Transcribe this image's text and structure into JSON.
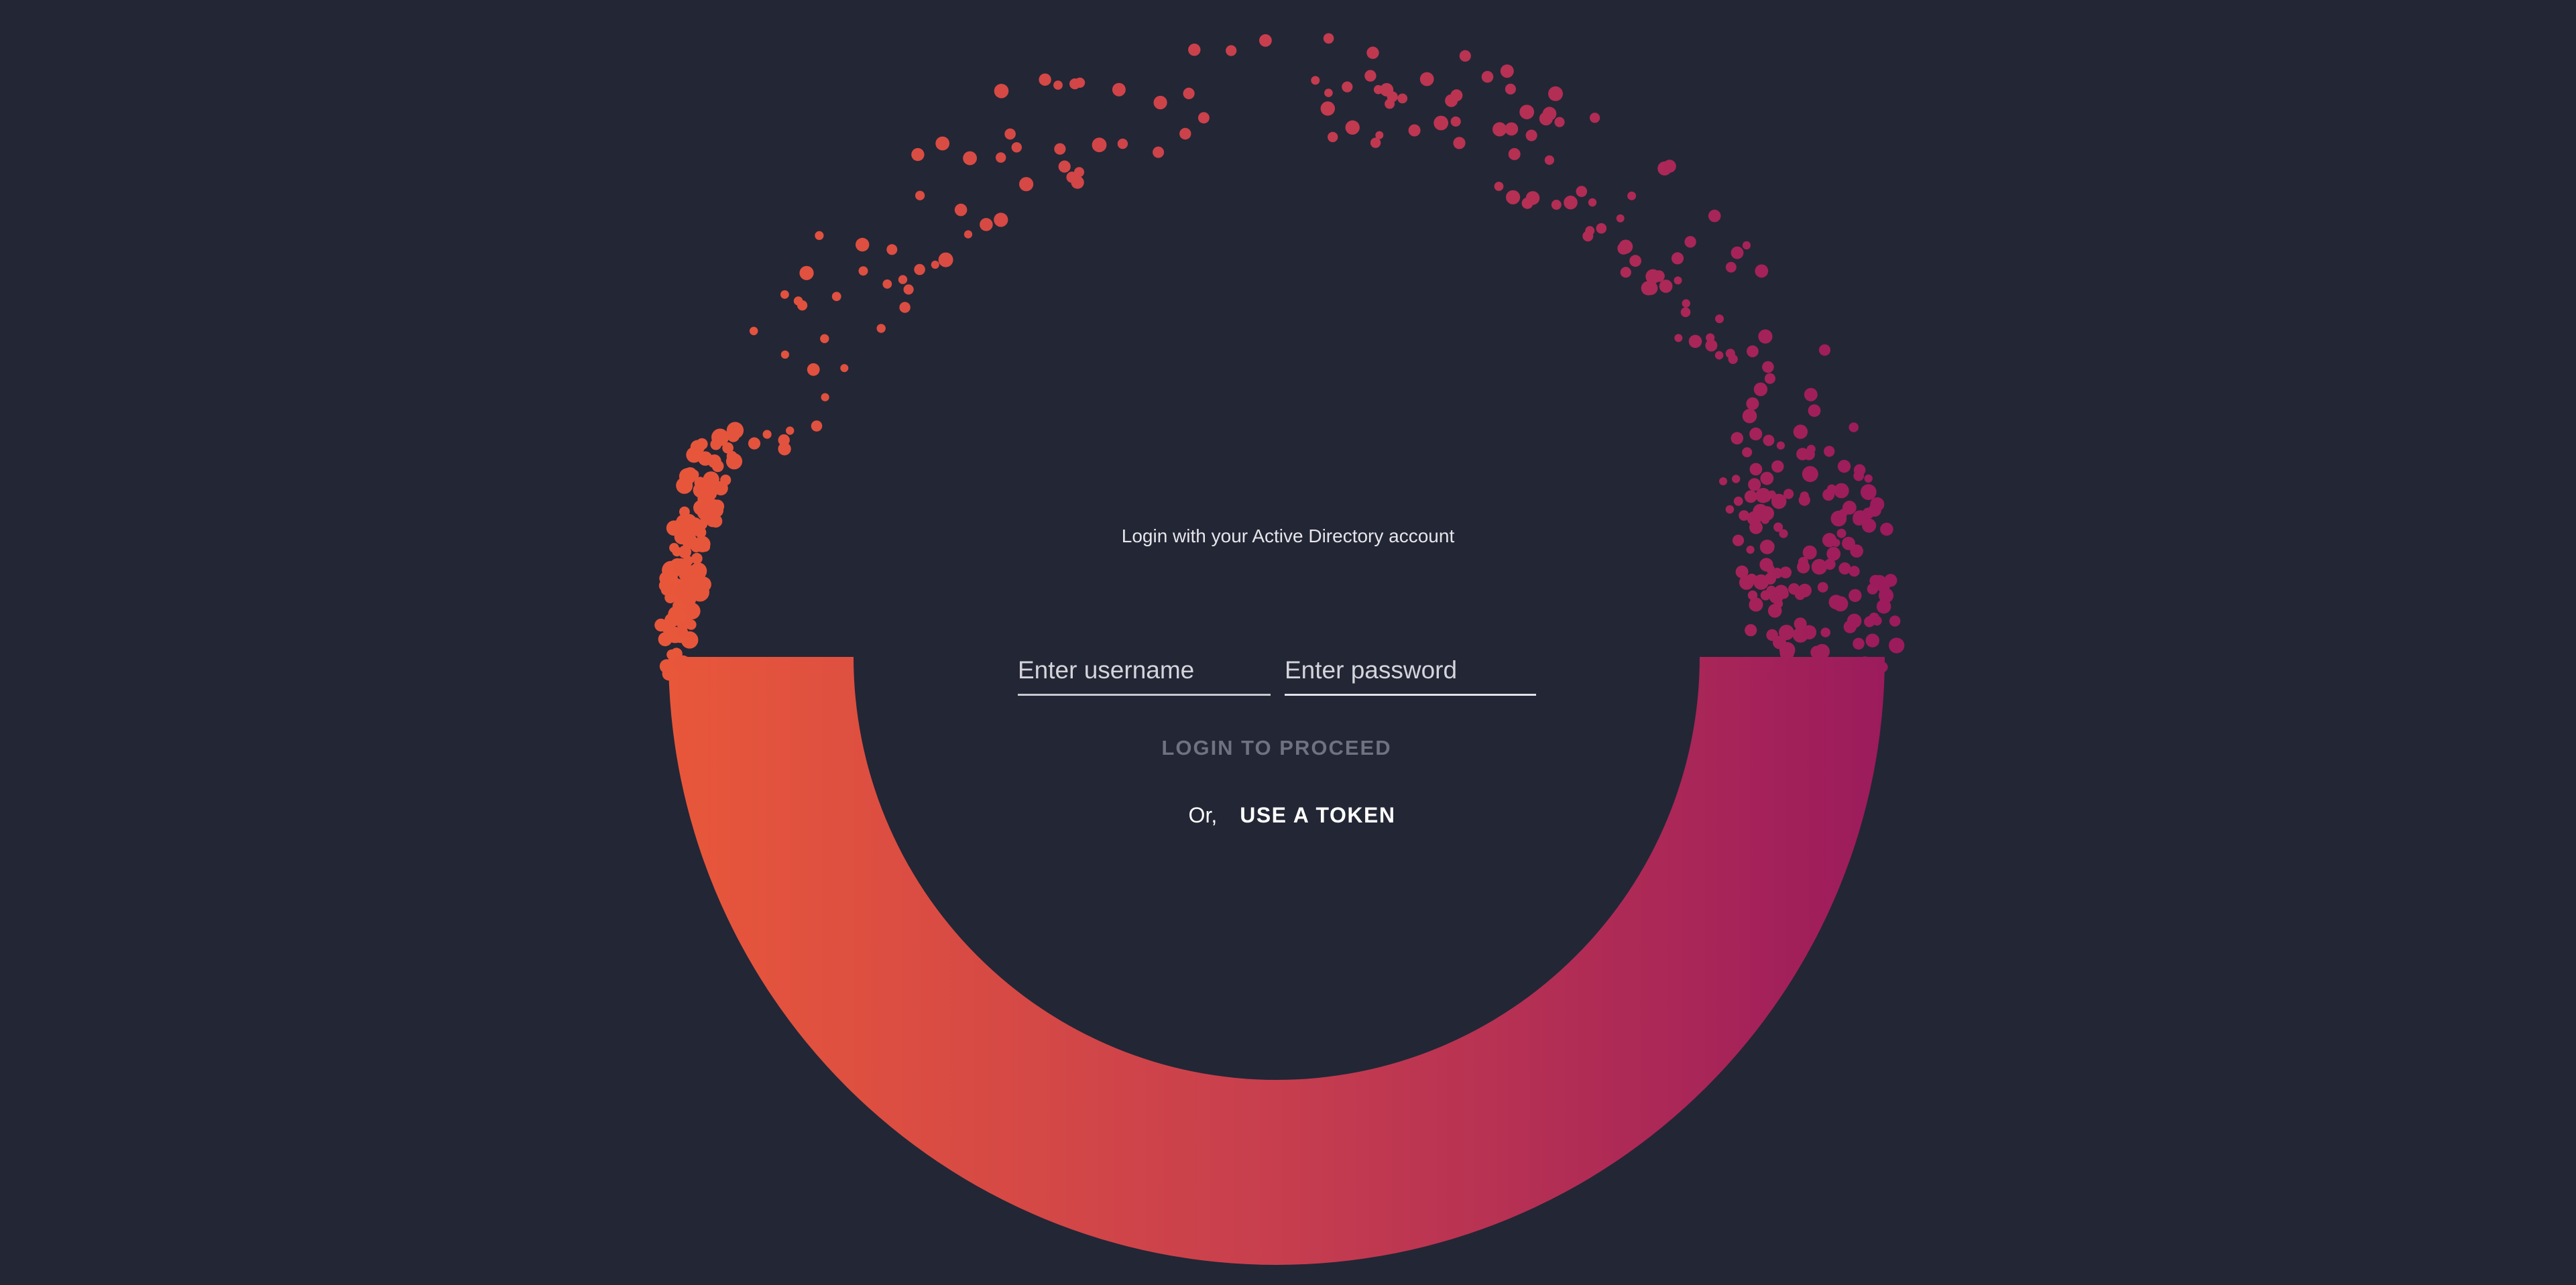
{
  "login": {
    "message": "Login with your Active Directory account",
    "username_placeholder": "Enter username",
    "password_placeholder": "Enter password",
    "login_button": "LOGIN TO PROCEED",
    "or_text": "Or,",
    "token_button": "USE A TOKEN"
  },
  "theme": {
    "background": "#232635",
    "ring_gradient_start": "#e8573a",
    "ring_gradient_mid": "#c73e4e",
    "ring_gradient_end": "#9b1b5c"
  }
}
